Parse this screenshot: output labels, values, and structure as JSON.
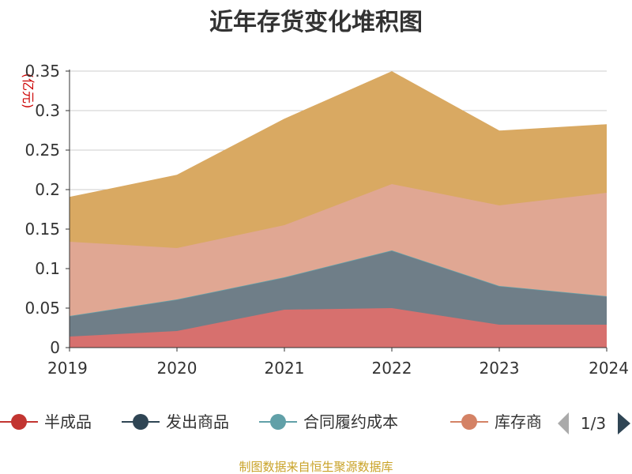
{
  "chart_data": {
    "type": "area",
    "stacked": true,
    "title": "近年存货变化堆积图",
    "ylabel": "(亿元)",
    "x": [
      "2019",
      "2020",
      "2021",
      "2022",
      "2023",
      "2024"
    ],
    "y_ticks": [
      "0",
      "0.05",
      "0.1",
      "0.15",
      "0.2",
      "0.25",
      "0.3",
      "0.35"
    ],
    "ylim": [
      0,
      0.35
    ],
    "grid": true,
    "legend_position": "bottom",
    "series": [
      {
        "name": "半成品",
        "color": "#d7706e",
        "values": [
          0.014,
          0.021,
          0.048,
          0.05,
          0.029,
          0.029
        ]
      },
      {
        "name": "发出商品",
        "color": "#6f7e88",
        "values": [
          0.026,
          0.04,
          0.041,
          0.073,
          0.049,
          0.036
        ]
      },
      {
        "name": "合同履约成本",
        "color": "#61a0a8",
        "values": [
          0,
          0,
          0,
          0,
          0,
          0
        ]
      },
      {
        "name": "库存商品",
        "color": "#e0a793",
        "values": [
          0.094,
          0.065,
          0.066,
          0.084,
          0.102,
          0.131
        ]
      },
      {
        "name": "",
        "color": "#d9a962",
        "values": [
          0.056,
          0.092,
          0.134,
          0.142,
          0.094,
          0.086
        ]
      }
    ],
    "legend": {
      "items": [
        {
          "label": "半成品",
          "color": "#c23531"
        },
        {
          "label": "发出商品",
          "color": "#2f4554"
        },
        {
          "label": "合同履约成本",
          "color": "#61a0a8"
        },
        {
          "label": "库存商",
          "color": "#d48265"
        }
      ],
      "page": "1/3"
    },
    "source": "制图数据来自恒生聚源数据库"
  }
}
